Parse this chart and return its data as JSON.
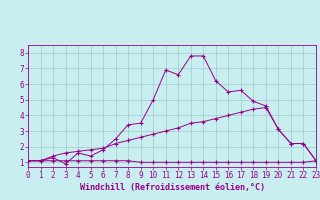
{
  "xlabel": "Windchill (Refroidissement éolien,°C)",
  "background_color": "#c8eef0",
  "grid_color": "#a0cccc",
  "line_color": "#990088",
  "xlim": [
    0,
    23
  ],
  "ylim": [
    0.7,
    8.5
  ],
  "xticks": [
    0,
    1,
    2,
    3,
    4,
    5,
    6,
    7,
    8,
    9,
    10,
    11,
    12,
    13,
    14,
    15,
    16,
    17,
    18,
    19,
    20,
    21,
    22,
    23
  ],
  "yticks": [
    1,
    2,
    3,
    4,
    5,
    6,
    7,
    8
  ],
  "line1_x": [
    0,
    1,
    2,
    3,
    4,
    5,
    6,
    7,
    8,
    9,
    10,
    11,
    12,
    13,
    14,
    15,
    16,
    17,
    18,
    19,
    20,
    21,
    22,
    23
  ],
  "line1_y": [
    1.1,
    1.1,
    1.1,
    1.1,
    1.1,
    1.1,
    1.1,
    1.1,
    1.1,
    1.0,
    1.0,
    1.0,
    1.0,
    1.0,
    1.0,
    1.0,
    1.0,
    1.0,
    1.0,
    1.0,
    1.0,
    1.0,
    1.0,
    1.1
  ],
  "line2_x": [
    0,
    1,
    2,
    3,
    4,
    5,
    6,
    7,
    8,
    9,
    10,
    11,
    12,
    13,
    14,
    15,
    16,
    17,
    18,
    19,
    20,
    21,
    22,
    23
  ],
  "line2_y": [
    1.1,
    1.1,
    1.4,
    1.6,
    1.7,
    1.8,
    1.9,
    2.2,
    2.4,
    2.6,
    2.8,
    3.0,
    3.2,
    3.5,
    3.6,
    3.8,
    4.0,
    4.2,
    4.4,
    4.5,
    3.1,
    2.2,
    2.2,
    1.1
  ],
  "line3_x": [
    0,
    1,
    2,
    3,
    4,
    5,
    6,
    7,
    8,
    9,
    10,
    11,
    12,
    13,
    14,
    15,
    16,
    17,
    18,
    19,
    20,
    21,
    22,
    23
  ],
  "line3_y": [
    1.1,
    1.1,
    1.3,
    0.9,
    1.6,
    1.4,
    1.8,
    2.5,
    3.4,
    3.5,
    5.0,
    6.9,
    6.6,
    7.8,
    7.8,
    6.2,
    5.5,
    5.6,
    4.9,
    4.6,
    3.1,
    2.2,
    2.2,
    1.1
  ],
  "font_family": "monospace",
  "xlabel_fontsize": 6.0,
  "tick_fontsize": 5.5
}
